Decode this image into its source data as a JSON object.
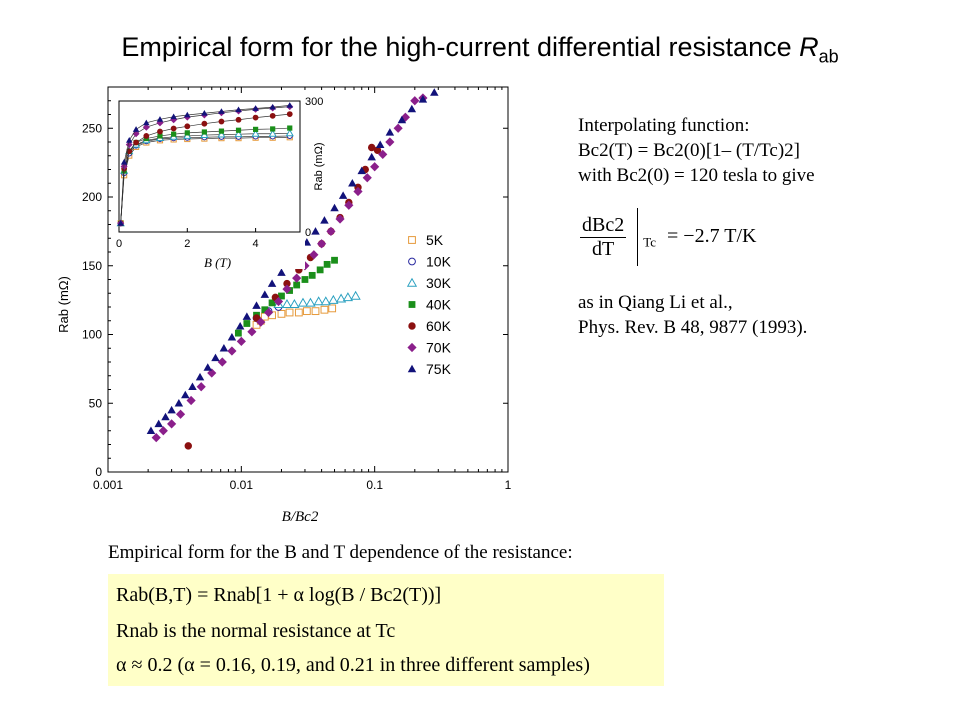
{
  "title": {
    "main": "Empirical form for the high-current differential resistance ",
    "symbol": "R",
    "sub": "ab"
  },
  "note": {
    "line1": "Interpolating function:",
    "line2": "Bc2(T) = Bc2(0)[1– (T/Tc)2]",
    "line3": "with Bc2(0) = 120 tesla to give",
    "formula_num": "dBc2",
    "formula_den": "dT",
    "formula_sub": "Tc",
    "formula_rhs": "= −2.7 T/K",
    "ref1": "as in Qiang Li et al.,",
    "ref2": "Phys. Rev. B 48, 9877 (1993)."
  },
  "empirical": {
    "label": "Empirical form for the B and T dependence of the resistance:",
    "eq1": "Rab(B,T) = Rnab[1 + α log(B / Bc2(T))]",
    "eq2": "Rnab is the normal resistance at Tc",
    "eq3": "α ≈ 0.2  (α = 0.16, 0.19, and 0.21 in three different samples)"
  },
  "chart_data": [
    {
      "type": "scatter",
      "xlabel": "B/Bc2",
      "ylabel": "Rab (mΩ)",
      "xscale": "log",
      "xlim": [
        0.001,
        1
      ],
      "ylim": [
        0,
        280
      ],
      "xticks": [
        "0.001",
        "0.01",
        "0.1",
        "1"
      ],
      "yticks": [
        "0",
        "50",
        "100",
        "150",
        "200",
        "250"
      ],
      "legend_position": "right",
      "series": [
        {
          "name": "5K",
          "marker": "open-square",
          "color": "#e69a3c",
          "x": [
            0.013,
            0.014,
            0.015,
            0.017,
            0.02,
            0.023,
            0.027,
            0.031,
            0.036,
            0.042,
            0.048
          ],
          "y": [
            107,
            110,
            113,
            114,
            115,
            116,
            116,
            117,
            117,
            118,
            119
          ]
        },
        {
          "name": "10K",
          "marker": "open-circle",
          "color": "#2a2aa0",
          "x": [
            0.013,
            0.016,
            0.019
          ],
          "y": [
            112,
            117,
            120
          ]
        },
        {
          "name": "30K",
          "marker": "open-triangle",
          "color": "#2aa0c0",
          "x": [
            0.019,
            0.022,
            0.025,
            0.029,
            0.033,
            0.038,
            0.043,
            0.049,
            0.056,
            0.063,
            0.072
          ],
          "y": [
            122,
            122,
            122,
            123,
            123,
            124,
            124,
            125,
            126,
            127,
            128
          ]
        },
        {
          "name": "40K",
          "marker": "filled-square",
          "color": "#1a8f1a",
          "x": [
            0.0095,
            0.011,
            0.013,
            0.015,
            0.017,
            0.02,
            0.023,
            0.026,
            0.03,
            0.034,
            0.039,
            0.044,
            0.05
          ],
          "y": [
            101,
            108,
            114,
            118,
            123,
            128,
            132,
            136,
            140,
            143,
            147,
            151,
            154
          ]
        },
        {
          "name": "60K",
          "marker": "filled-circle",
          "color": "#8b1010",
          "x": [
            0.004,
            0.013,
            0.018,
            0.022,
            0.027,
            0.033,
            0.04,
            0.047,
            0.055,
            0.064,
            0.075,
            0.085,
            0.095,
            0.105
          ],
          "y": [
            19,
            112,
            127,
            137,
            147,
            156,
            166,
            175,
            185,
            196,
            207,
            220,
            236,
            234
          ]
        },
        {
          "name": "70K",
          "marker": "filled-diamond",
          "color": "#8b1f8b",
          "x": [
            0.0023,
            0.0026,
            0.003,
            0.0035,
            0.0042,
            0.005,
            0.006,
            0.0072,
            0.0085,
            0.01,
            0.012,
            0.014,
            0.016,
            0.019,
            0.022,
            0.026,
            0.03,
            0.035,
            0.04,
            0.047,
            0.055,
            0.064,
            0.075,
            0.088,
            0.1,
            0.115,
            0.13,
            0.15,
            0.17,
            0.2,
            0.23
          ],
          "y": [
            25,
            30,
            35,
            42,
            52,
            62,
            72,
            80,
            88,
            95,
            102,
            109,
            116,
            124,
            133,
            141,
            150,
            158,
            166,
            175,
            184,
            194,
            204,
            214,
            222,
            231,
            240,
            250,
            258,
            270,
            272
          ]
        },
        {
          "name": "75K",
          "marker": "filled-triangle",
          "color": "#12127a",
          "x": [
            0.0021,
            0.0024,
            0.0027,
            0.003,
            0.0034,
            0.0038,
            0.0043,
            0.0049,
            0.0056,
            0.0064,
            0.0074,
            0.0085,
            0.0098,
            0.011,
            0.013,
            0.015,
            0.017,
            0.02,
            0.023,
            0.027,
            0.031,
            0.036,
            0.042,
            0.05,
            0.058,
            0.068,
            0.08,
            0.095,
            0.11,
            0.13,
            0.16,
            0.19,
            0.23,
            0.28
          ],
          "y": [
            30,
            35,
            40,
            45,
            50,
            56,
            62,
            69,
            76,
            83,
            90,
            98,
            106,
            113,
            121,
            129,
            137,
            145,
            152,
            160,
            167,
            175,
            183,
            192,
            201,
            210,
            219,
            229,
            238,
            247,
            256,
            264,
            271,
            276
          ]
        }
      ]
    },
    {
      "type": "scatter",
      "xlabel": "B (T)",
      "ylabel": "Rab (mΩ)",
      "xlim": [
        0,
        5.3
      ],
      "ylim": [
        0,
        300
      ],
      "xticks": [
        "0",
        "2",
        "4"
      ],
      "yticks": [
        "0",
        "300"
      ],
      "series": [
        {
          "name": "5K",
          "marker": "open-square",
          "color": "#e69a3c",
          "x": [
            0.05,
            0.15,
            0.3,
            0.5,
            0.8,
            1.2,
            1.6,
            2.0,
            2.5,
            3.0,
            3.5,
            4.0,
            4.5,
            5.0
          ],
          "y": [
            20,
            130,
            175,
            195,
            205,
            210,
            212,
            213,
            214,
            215,
            215,
            216,
            216,
            217
          ]
        },
        {
          "name": "10K",
          "marker": "open-circle",
          "color": "#2a2aa0",
          "x": [
            0.05,
            0.15,
            0.3,
            0.5,
            0.8,
            1.2,
            1.6,
            2.0,
            2.5,
            3.0,
            3.5,
            4.0,
            4.5,
            5.0
          ],
          "y": [
            20,
            135,
            180,
            198,
            208,
            213,
            215,
            216,
            217,
            218,
            218,
            219,
            219,
            220
          ]
        },
        {
          "name": "30K",
          "marker": "open-triangle",
          "color": "#2aa0c0",
          "x": [
            0.05,
            0.15,
            0.3,
            0.5,
            0.8,
            1.2,
            1.6,
            2.0,
            2.5,
            3.0,
            3.5,
            4.0,
            4.5,
            5.0
          ],
          "y": [
            20,
            140,
            185,
            200,
            210,
            215,
            218,
            220,
            222,
            223,
            224,
            225,
            225,
            226
          ]
        },
        {
          "name": "40K",
          "marker": "filled-square",
          "color": "#1a8f1a",
          "x": [
            0.05,
            0.15,
            0.3,
            0.5,
            0.8,
            1.2,
            1.6,
            2.0,
            2.5,
            3.0,
            3.5,
            4.0,
            4.5,
            5.0
          ],
          "y": [
            20,
            140,
            185,
            205,
            214,
            220,
            224,
            227,
            229,
            231,
            233,
            235,
            236,
            238
          ]
        },
        {
          "name": "60K",
          "marker": "filled-circle",
          "color": "#8b1010",
          "x": [
            0.05,
            0.15,
            0.3,
            0.5,
            0.8,
            1.2,
            1.6,
            2.0,
            2.5,
            3.0,
            3.5,
            4.0,
            4.5,
            5.0
          ],
          "y": [
            20,
            145,
            185,
            205,
            220,
            230,
            237,
            242,
            248,
            253,
            257,
            262,
            266,
            270
          ]
        },
        {
          "name": "70K",
          "marker": "filled-diamond",
          "color": "#8b1f8b",
          "x": [
            0.05,
            0.15,
            0.3,
            0.5,
            0.8,
            1.2,
            1.6,
            2.0,
            2.5,
            3.0,
            3.5,
            4.0,
            4.5,
            5.0
          ],
          "y": [
            20,
            150,
            200,
            225,
            240,
            250,
            257,
            263,
            268,
            273,
            277,
            281,
            284,
            287
          ]
        },
        {
          "name": "75K",
          "marker": "filled-triangle",
          "color": "#12127a",
          "x": [
            0.05,
            0.15,
            0.3,
            0.5,
            0.8,
            1.2,
            1.6,
            2.0,
            2.5,
            3.0,
            3.5,
            4.0,
            4.5,
            5.0
          ],
          "y": [
            20,
            160,
            210,
            235,
            250,
            258,
            264,
            268,
            272,
            276,
            280,
            283,
            286,
            290
          ]
        }
      ]
    }
  ]
}
